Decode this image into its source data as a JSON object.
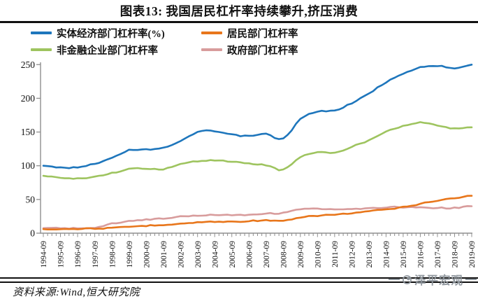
{
  "chart_data": {
    "type": "line",
    "title": "图表13: 我国居民杠杆率持续攀升,挤压消费",
    "categories": [
      "1994-09",
      "1995-09",
      "1996-09",
      "1997-09",
      "1998-09",
      "1999-09",
      "2000-09",
      "2001-09",
      "2002-09",
      "2003-09",
      "2004-09",
      "2005-09",
      "2006-09",
      "2007-09",
      "2008-09",
      "2009-09",
      "2010-09",
      "2011-09",
      "2012-09",
      "2013-09",
      "2014-09",
      "2015-09",
      "2016-09",
      "2017-09",
      "2018-09",
      "2019-09"
    ],
    "series": [
      {
        "name": "实体经济部门杠杆率(%)",
        "color": "#1e76bc",
        "values": [
          100,
          97,
          98,
          103,
          112,
          123,
          124,
          127,
          136,
          150,
          151,
          146,
          144,
          147,
          140,
          169,
          180,
          182,
          193,
          207,
          224,
          236,
          246,
          248,
          245,
          250
        ]
      },
      {
        "name": "居民部门杠杆率",
        "color": "#e8761b",
        "values": [
          6,
          6,
          6.5,
          7,
          7.5,
          9.5,
          11,
          12.5,
          14,
          16,
          17,
          17,
          18,
          19,
          18,
          23,
          26,
          27.5,
          29.5,
          32.5,
          35,
          38.5,
          43.5,
          48.5,
          52,
          55.5
        ]
      },
      {
        "name": "非金融企业部门杠杆率",
        "color": "#9ec45f",
        "values": [
          85,
          82,
          81,
          84,
          89,
          95,
          96,
          95,
          102,
          107,
          108,
          106,
          103,
          101,
          94,
          113,
          120,
          119,
          128,
          138,
          151,
          159,
          164,
          160,
          155,
          157
        ]
      },
      {
        "name": "政府部门杠杆率",
        "color": "#d89c9c",
        "values": [
          7.5,
          7.5,
          7.5,
          8,
          14,
          18,
          20,
          22,
          24.5,
          26,
          27.5,
          27,
          27.5,
          29,
          30,
          36,
          36,
          35,
          35.5,
          36.5,
          38.5,
          38.5,
          38,
          37.5,
          37.5,
          40
        ]
      }
    ],
    "ylim": [
      0,
      250
    ],
    "yticks": [
      0,
      50,
      100,
      150,
      200,
      250
    ],
    "xlabel": "",
    "ylabel": "",
    "grid": false,
    "legend_position": "top",
    "x_minor_ticks": "quarterly"
  },
  "footer": {
    "source": "资料来源:Wind,恒大研究院"
  },
  "watermark": {
    "text": "泽平宏观",
    "icon": "circle-logo-icon"
  },
  "axis_color": "#8f8f8f"
}
